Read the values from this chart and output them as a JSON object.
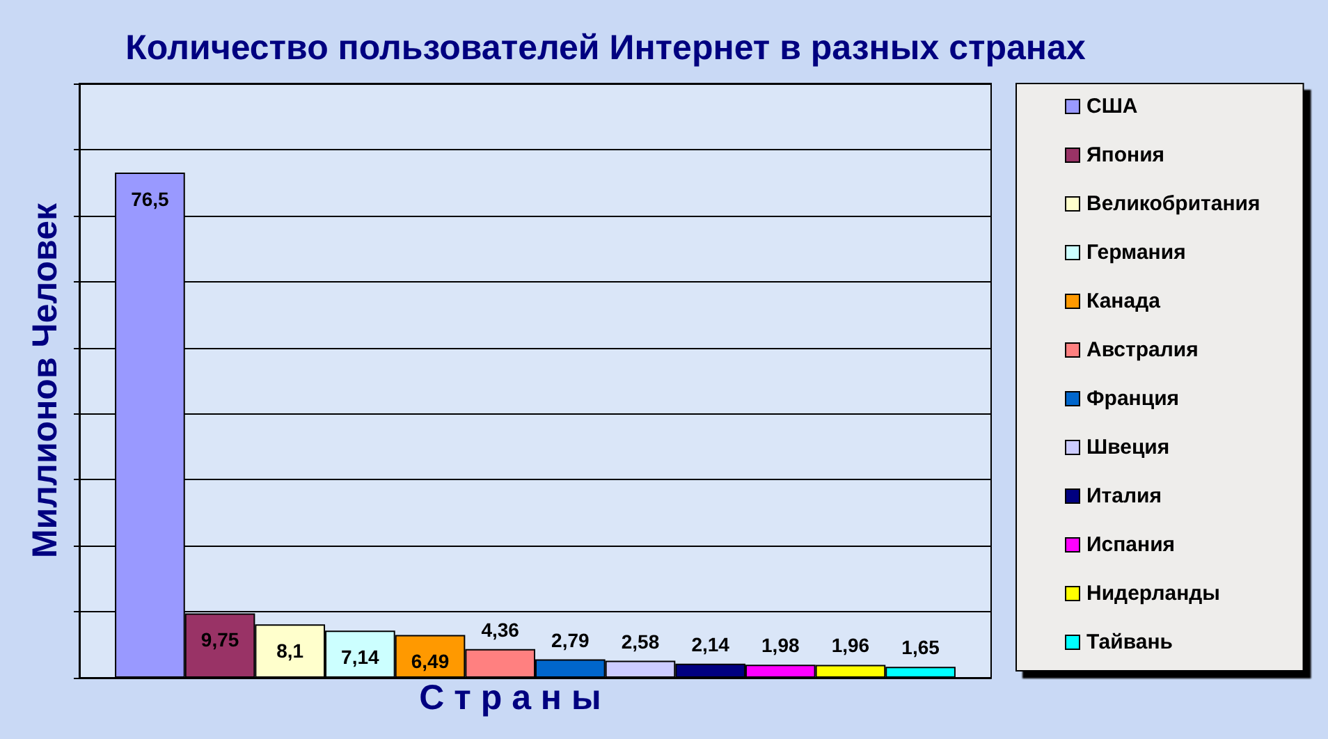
{
  "chart_data": {
    "type": "bar",
    "title": "Количество пользователей Интернет в разных странах",
    "xlabel": "С т р а н ы",
    "ylabel": "Миллионов Человек",
    "categories": [
      null
    ],
    "series": [
      {
        "name": "США",
        "color": "#9999ff",
        "values": [
          76.5
        ],
        "value_labels": [
          "76,5"
        ]
      },
      {
        "name": "Япония",
        "color": "#993366",
        "values": [
          9.75
        ],
        "value_labels": [
          "9,75"
        ]
      },
      {
        "name": "Великобритания",
        "color": "#ffffcc",
        "values": [
          8.1
        ],
        "value_labels": [
          "8,1"
        ]
      },
      {
        "name": "Германия",
        "color": "#ccffff",
        "values": [
          7.14
        ],
        "value_labels": [
          "7,14"
        ]
      },
      {
        "name": "Канада",
        "color": "#ff9900",
        "values": [
          6.49
        ],
        "value_labels": [
          "6,49"
        ]
      },
      {
        "name": "Австралия",
        "color": "#ff8080",
        "values": [
          4.36
        ],
        "value_labels": [
          "4,36"
        ]
      },
      {
        "name": "Франция",
        "color": "#0066cc",
        "values": [
          2.79
        ],
        "value_labels": [
          "2,79"
        ]
      },
      {
        "name": "Швеция",
        "color": "#ccccff",
        "values": [
          2.58
        ],
        "value_labels": [
          "2,58"
        ]
      },
      {
        "name": "Италия",
        "color": "#000080",
        "values": [
          2.14
        ],
        "value_labels": [
          "2,14"
        ]
      },
      {
        "name": "Испания",
        "color": "#ff00ff",
        "values": [
          1.98
        ],
        "value_labels": [
          "1,98"
        ]
      },
      {
        "name": "Нидерланды",
        "color": "#ffff00",
        "values": [
          1.96
        ],
        "value_labels": [
          "1,96"
        ]
      },
      {
        "name": "Тайвань",
        "color": "#00ffff",
        "values": [
          1.65
        ],
        "value_labels": [
          "1,65"
        ]
      }
    ],
    "ylim": [
      0,
      90
    ],
    "yticks": [
      {
        "value": 0,
        "label": null
      },
      {
        "value": 10,
        "label": null
      },
      {
        "value": 20,
        "label": null
      },
      {
        "value": 30,
        "label": null
      },
      {
        "value": 40,
        "label": null
      },
      {
        "value": 50,
        "label": null
      },
      {
        "value": 60,
        "label": null
      },
      {
        "value": 70,
        "label": null
      },
      {
        "value": 80,
        "label": null
      },
      {
        "value": 90,
        "label": null
      }
    ],
    "grid": "y",
    "legend": "right",
    "tick_labels": false
  }
}
